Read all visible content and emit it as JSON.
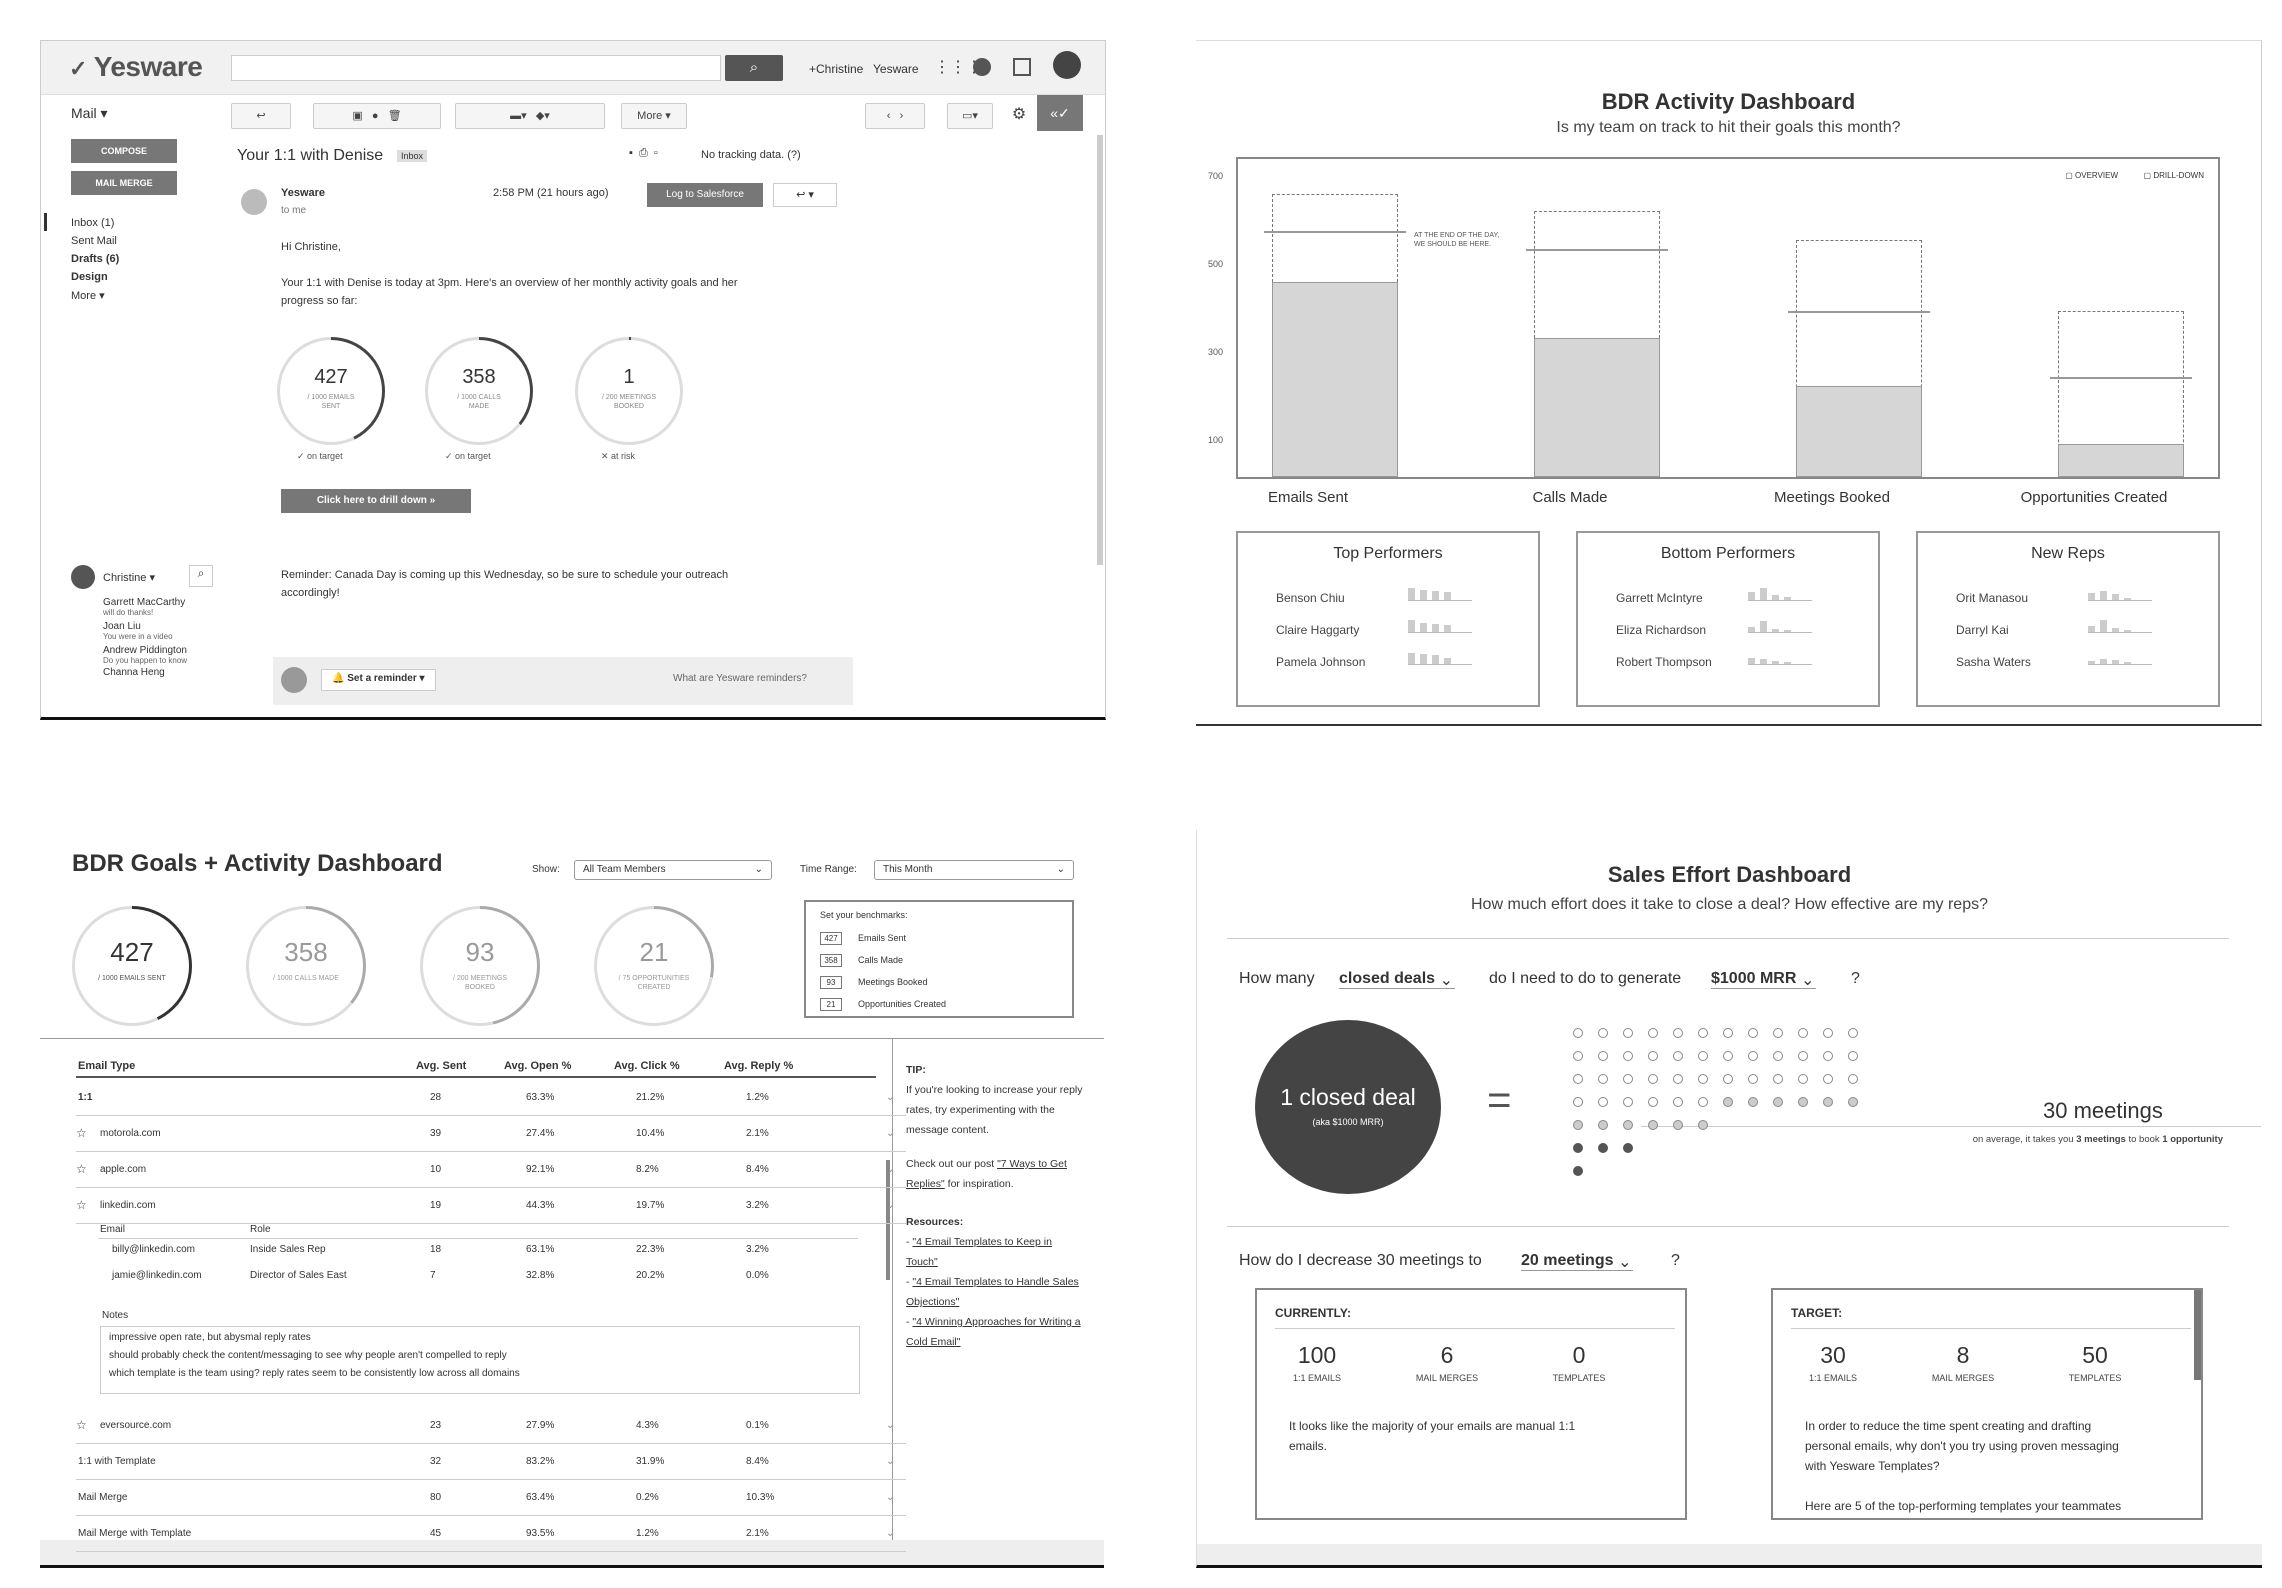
{
  "gmail": {
    "logo": "Yesware",
    "user_plus": "+Christine",
    "user_app": "Yesware",
    "mail_menu": "Mail ▾",
    "more_btn": "More ▾",
    "compose": "COMPOSE",
    "mail_merge": "MAIL MERGE",
    "folders": [
      "Inbox (1)",
      "Sent Mail",
      "Drafts (6)",
      "Design",
      "More ▾"
    ],
    "subject": "Your 1:1 with Denise",
    "label": "Inbox",
    "tracking": "No tracking data. (?)",
    "sender": "Yesware",
    "to": "to me",
    "time": "2:58 PM (21 hours ago)",
    "salesforce": "Log to Salesforce",
    "greeting": "Hi Christine,",
    "body1": "Your 1:1 with Denise is today at 3pm. Here's an overview of her monthly activity goals and her",
    "body2": "progress so far:",
    "rings": [
      {
        "value": "427",
        "label1": "/ 1000 EMAILS",
        "label2": "SENT",
        "status": "on target",
        "progress": 0.427
      },
      {
        "value": "358",
        "label1": "/ 1000 CALLS",
        "label2": "MADE",
        "status": "on target",
        "progress": 0.358
      },
      {
        "value": "1",
        "label1": "/ 200 MEETINGS",
        "label2": "BOOKED",
        "status": "at risk",
        "progress": 0.005
      }
    ],
    "drill": "Click here to drill down »",
    "reminder1": "Reminder: Canada Day is coming up this Wednesday, so be sure to schedule your outreach",
    "reminder2": "accordingly!",
    "chat_user": "Christine ▾",
    "chats": [
      {
        "name": "Garrett MacCarthy",
        "msg": "will do thanks!"
      },
      {
        "name": "Joan Liu",
        "msg": "You were in a video"
      },
      {
        "name": "Andrew Piddington",
        "msg": "Do you happen to know"
      },
      {
        "name": "Channa Heng",
        "msg": ""
      }
    ],
    "set_reminder": "Set a reminder ▾",
    "reminder_help": "What are Yesware reminders?"
  },
  "bdr": {
    "title": "BDR Activity Dashboard",
    "subtitle": "Is my team on track to hit their goals this month?",
    "legend": [
      "OVERVIEW",
      "DRILL-DOWN"
    ],
    "annotation1": "AT THE END OF THE DAY,",
    "annotation2": "WE SHOULD BE HERE.",
    "yticks": [
      "700",
      "500",
      "300",
      "100"
    ],
    "boxes": [
      {
        "title": "Top Performers",
        "names": [
          "Benson Chiu",
          "Claire Haggarty",
          "Pamela Johnson"
        ]
      },
      {
        "title": "Bottom Performers",
        "names": [
          "Garrett McIntyre",
          "Eliza Richardson",
          "Robert Thompson"
        ]
      },
      {
        "title": "New Reps",
        "names": [
          "Orit Manasou",
          "Darryl Kai",
          "Sasha Waters"
        ]
      }
    ]
  },
  "chart_data": {
    "type": "bar",
    "categories": [
      "Emails Sent",
      "Calls Made",
      "Meetings Booked",
      "Opportunities Created"
    ],
    "series": [
      {
        "name": "actual",
        "values": [
          440,
          315,
          205,
          75
        ]
      },
      {
        "name": "target",
        "values": [
          640,
          600,
          535,
          375
        ]
      },
      {
        "name": "expected",
        "values": [
          555,
          515,
          375,
          225
        ]
      }
    ],
    "ylim": [
      0,
      700
    ],
    "yticks": [
      100,
      300,
      500,
      700
    ]
  },
  "goals": {
    "title": "BDR Goals + Activity Dashboard",
    "show_label": "Show:",
    "show_value": "All Team Members",
    "range_label": "Time Range:",
    "range_value": "This Month",
    "rings": [
      {
        "value": "427",
        "label1": "/ 1000 EMAILS SENT",
        "label2": "",
        "progress": 0.427
      },
      {
        "value": "358",
        "label1": "/ 1000 CALLS MADE",
        "label2": "",
        "progress": 0.358
      },
      {
        "value": "93",
        "label1": "/ 200 MEETINGS",
        "label2": "BOOKED",
        "progress": 0.465
      },
      {
        "value": "21",
        "label1": "/ 75 OPPORTUNITIES",
        "label2": "CREATED",
        "progress": 0.28
      }
    ],
    "bench_title": "Set your benchmarks:",
    "bench": [
      {
        "v": "427",
        "l": "Emails Sent"
      },
      {
        "v": "358",
        "l": "Calls Made"
      },
      {
        "v": "93",
        "l": "Meetings Booked"
      },
      {
        "v": "21",
        "l": "Opportunities Created"
      }
    ],
    "headers": [
      "Email Type",
      "Avg. Sent",
      "Avg. Open %",
      "Avg. Click %",
      "Avg. Reply %"
    ],
    "rows": [
      {
        "name": "1:1",
        "sent": "28",
        "open": "63.3%",
        "click": "21.2%",
        "reply": "1.2%"
      },
      {
        "name": "motorola.com",
        "sent": "39",
        "open": "27.4%",
        "click": "10.4%",
        "reply": "2.1%"
      },
      {
        "name": "apple.com",
        "sent": "10",
        "open": "92.1%",
        "click": "8.2%",
        "reply": "8.4%"
      },
      {
        "name": "linkedin.com",
        "sent": "19",
        "open": "44.3%",
        "click": "19.7%",
        "reply": "3.2%"
      }
    ],
    "sub_headers": [
      "Email",
      "Role"
    ],
    "sub_rows": [
      {
        "email": "billy@linkedin.com",
        "role": "Inside Sales Rep",
        "sent": "18",
        "open": "63.1%",
        "click": "22.3%",
        "reply": "3.2%"
      },
      {
        "email": "jamie@linkedin.com",
        "role": "Director of Sales East",
        "sent": "7",
        "open": "32.8%",
        "click": "20.2%",
        "reply": "0.0%"
      }
    ],
    "notes_label": "Notes",
    "notes": [
      "impressive open rate, but abysmal reply rates",
      "should probably check the content/messaging to see why people aren't compelled to reply",
      "which template is the team using? reply rates seem to be consistently low across all domains"
    ],
    "rows2": [
      {
        "name": "eversource.com",
        "sent": "23",
        "open": "27.9%",
        "click": "4.3%",
        "reply": "0.1%"
      },
      {
        "name": "1:1 with Template",
        "sent": "32",
        "open": "83.2%",
        "click": "31.9%",
        "reply": "8.4%"
      },
      {
        "name": "Mail Merge",
        "sent": "80",
        "open": "63.4%",
        "click": "0.2%",
        "reply": "10.3%"
      },
      {
        "name": "Mail Merge with Template",
        "sent": "45",
        "open": "93.5%",
        "click": "1.2%",
        "reply": "2.1%"
      }
    ],
    "tip_title": "TIP:",
    "tip1": "If you're looking to increase your reply rates, try experimenting with the message content.",
    "tip2a": "Check out our post ",
    "tip2link": "\"7 Ways to Get Replies\"",
    "tip2b": " for inspiration.",
    "resources": "Resources:",
    "links": [
      "\"4 Email Templates to Keep in Touch\"",
      "\"4 Email Templates to Handle Sales Objections\"",
      "\"4 Winning Approaches for Writing a Cold Email\""
    ]
  },
  "effort": {
    "title": "Sales Effort Dashboard",
    "subtitle": "How much effort does it take to close a deal? How effective are my reps?",
    "q1a": "How many",
    "q1dd": "closed deals",
    "q1b": "do I need to do to generate",
    "q1dd2": "$1000 MRR",
    "q1c": "?",
    "deal": "1 closed deal",
    "deal_sub": "(aka $1000 MRR)",
    "equals": "=",
    "meetings": "30 meetings",
    "meetings_note_a": "on average, it takes you ",
    "meetings_note_b": "3 meetings",
    "meetings_note_c": " to book ",
    "meetings_note_d": "1 opportunity",
    "q2a": "How do I decrease 30 meetings to",
    "q2dd": "20 meetings",
    "q2c": "?",
    "current_title": "CURRENTLY:",
    "current": [
      {
        "n": "100",
        "l": "1:1 EMAILS"
      },
      {
        "n": "6",
        "l": "MAIL MERGES"
      },
      {
        "n": "0",
        "l": "TEMPLATES"
      }
    ],
    "current_text": [
      "It looks like the majority of your emails are manual 1:1",
      "emails."
    ],
    "target_title": "TARGET:",
    "target": [
      {
        "n": "30",
        "l": "1:1 EMAILS"
      },
      {
        "n": "8",
        "l": "MAIL MERGES"
      },
      {
        "n": "50",
        "l": "TEMPLATES"
      }
    ],
    "target_text": [
      "In order to reduce the time spent creating and drafting",
      "personal emails, why don't you try using proven messaging",
      "with Yesware Templates?",
      "",
      "Here are 5 of the top-performing templates your teammates"
    ]
  }
}
